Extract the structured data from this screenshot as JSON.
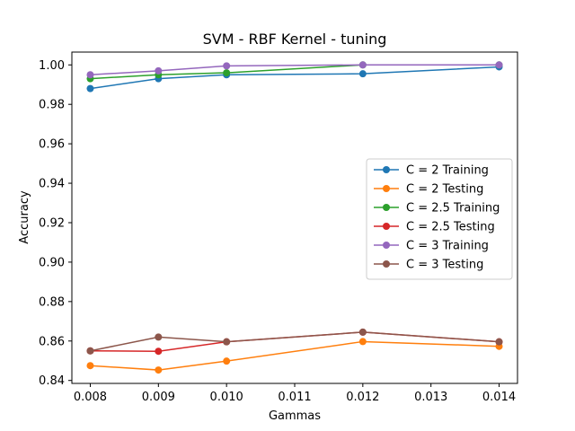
{
  "chart_data": {
    "type": "line",
    "title": "SVM - RBF Kernel - tuning",
    "xlabel": "Gammas",
    "ylabel": "Accuracy",
    "x": [
      0.008,
      0.009,
      0.01,
      0.012,
      0.014
    ],
    "xlim": [
      0.00773,
      0.01427
    ],
    "ylim": [
      0.8385,
      1.0065
    ],
    "xticks": [
      0.008,
      0.009,
      0.01,
      0.011,
      0.012,
      0.013,
      0.014
    ],
    "xtick_labels": [
      "0.008",
      "0.009",
      "0.010",
      "0.011",
      "0.012",
      "0.013",
      "0.014"
    ],
    "yticks": [
      0.84,
      0.86,
      0.88,
      0.9,
      0.92,
      0.94,
      0.96,
      0.98,
      1.0
    ],
    "ytick_labels": [
      "0.84",
      "0.86",
      "0.88",
      "0.90",
      "0.92",
      "0.94",
      "0.96",
      "0.98",
      "1.00"
    ],
    "grid": false,
    "legend_position": "center-right",
    "series": [
      {
        "name": "C = 2 Training",
        "color": "#1f77b4",
        "values": [
          0.988,
          0.993,
          0.995,
          0.9955,
          0.999
        ]
      },
      {
        "name": "C = 2 Testing",
        "color": "#ff7f0e",
        "values": [
          0.8475,
          0.8453,
          0.8498,
          0.8597,
          0.8573
        ]
      },
      {
        "name": "C = 2.5 Training",
        "color": "#2ca02c",
        "values": [
          0.993,
          0.995,
          0.996,
          1.0,
          1.0
        ]
      },
      {
        "name": "C = 2.5 Testing",
        "color": "#d62728",
        "values": [
          0.855,
          0.8548,
          0.8596,
          0.8645,
          0.8596
        ]
      },
      {
        "name": "C = 3 Training",
        "color": "#9467bd",
        "values": [
          0.995,
          0.997,
          0.9995,
          1.0,
          1.0
        ]
      },
      {
        "name": "C = 3 Testing",
        "color": "#8c564b",
        "values": [
          0.855,
          0.862,
          0.8596,
          0.8645,
          0.8596
        ]
      }
    ]
  }
}
